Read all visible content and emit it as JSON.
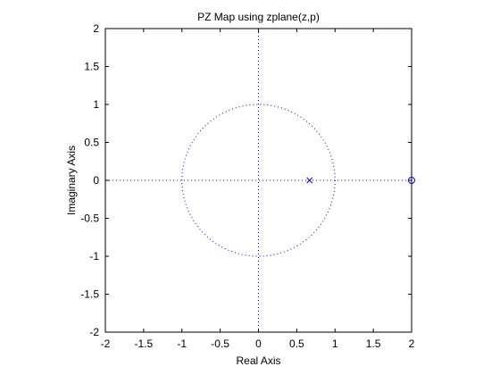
{
  "chart_data": {
    "type": "scatter",
    "title": "PZ Map using zplane(z,p)",
    "xlabel": "Real Axis",
    "ylabel": "Imaginary Axis",
    "xlim": [
      -2,
      2
    ],
    "ylim": [
      -2,
      2
    ],
    "xticks": [
      "-2",
      "-1.5",
      "-1",
      "-0.5",
      "0",
      "0.5",
      "1",
      "1.5",
      "2"
    ],
    "yticks": [
      "2",
      "1.5",
      "1",
      "0.5",
      "0",
      "-0.5",
      "-1",
      "-1.5",
      "-2"
    ],
    "grid": false,
    "unit_circle": {
      "center": [
        0,
        0
      ],
      "radius": 1,
      "style": "dotted"
    },
    "zeros": [
      {
        "re": 2,
        "im": 0
      }
    ],
    "poles": [
      {
        "re": 0.6667,
        "im": 0
      }
    ],
    "colors": {
      "marks": "#0000ff",
      "axes": "#000000",
      "background": "#ffffff"
    }
  }
}
